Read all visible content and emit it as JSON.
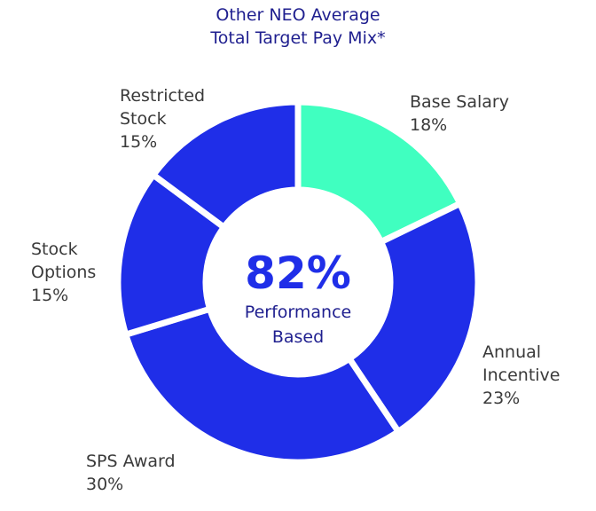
{
  "chart_data": {
    "type": "pie",
    "title": [
      "Other NEO Average",
      "Total Target Pay Mix*"
    ],
    "center": {
      "value": "82%",
      "line1": "Performance",
      "line2": "Based"
    },
    "slices": [
      {
        "label": [
          "Base Salary"
        ],
        "pct_label": "18%",
        "value": 18,
        "color": "#40ffc0"
      },
      {
        "label": [
          "Annual",
          "Incentive"
        ],
        "pct_label": "23%",
        "value": 23,
        "color": "#1f2ee8"
      },
      {
        "label": [
          "SPS Award"
        ],
        "pct_label": "30%",
        "value": 30,
        "color": "#1f2ee8"
      },
      {
        "label": [
          "Stock",
          "Options"
        ],
        "pct_label": "15%",
        "value": 15,
        "color": "#1f2ee8"
      },
      {
        "label": [
          "Restricted",
          "Stock"
        ],
        "pct_label": "15%",
        "value": 15,
        "color": "#1f2ee8"
      }
    ]
  }
}
